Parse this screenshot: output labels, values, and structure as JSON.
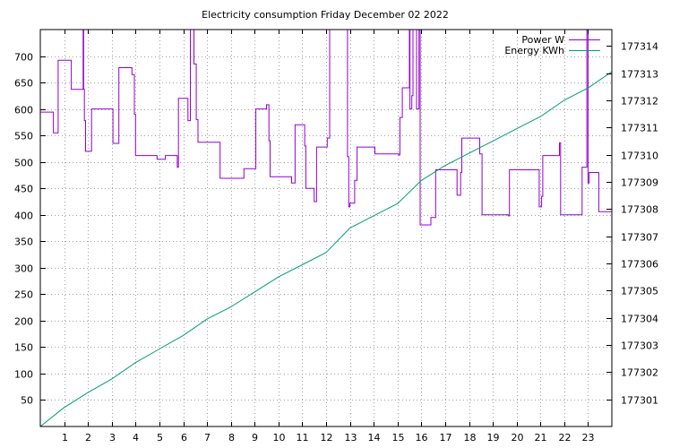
{
  "chart_data": {
    "type": "line",
    "title": "Electricity consumption Friday December 02 2022",
    "xlabel": "",
    "ylabel": "",
    "y2label": "",
    "grid": true,
    "legend_position": "top-right",
    "x_range": [
      0,
      24
    ],
    "x_ticks": [
      1,
      2,
      3,
      4,
      5,
      6,
      7,
      8,
      9,
      10,
      11,
      12,
      13,
      14,
      15,
      16,
      17,
      18,
      19,
      20,
      21,
      22,
      23
    ],
    "y_range": [
      0,
      750
    ],
    "y_ticks": [
      50,
      100,
      150,
      200,
      250,
      300,
      350,
      400,
      450,
      500,
      550,
      600,
      650,
      700
    ],
    "y2_range": [
      177300.0,
      177314.6
    ],
    "y2_ticks": [
      177301,
      177302,
      177303,
      177304,
      177305,
      177306,
      177307,
      177308,
      177309,
      177310,
      177311,
      177312,
      177313,
      177314
    ],
    "series": [
      {
        "name": "Power W",
        "axis": "y",
        "color": "#9400d3",
        "step": true,
        "points": [
          [
            0.0,
            594
          ],
          [
            0.55,
            555
          ],
          [
            0.75,
            692
          ],
          [
            1.3,
            637
          ],
          [
            1.8,
            750
          ],
          [
            1.82,
            637
          ],
          [
            1.85,
            578
          ],
          [
            1.9,
            520
          ],
          [
            2.15,
            600
          ],
          [
            3.05,
            535
          ],
          [
            3.3,
            678
          ],
          [
            3.85,
            665
          ],
          [
            3.95,
            590
          ],
          [
            4.0,
            512
          ],
          [
            4.9,
            505
          ],
          [
            5.25,
            512
          ],
          [
            5.75,
            490
          ],
          [
            5.8,
            620
          ],
          [
            6.2,
            578
          ],
          [
            6.3,
            750
          ],
          [
            6.45,
            685
          ],
          [
            6.55,
            580
          ],
          [
            6.62,
            537
          ],
          [
            7.55,
            469
          ],
          [
            8.55,
            487
          ],
          [
            9.05,
            600
          ],
          [
            9.5,
            608
          ],
          [
            9.6,
            540
          ],
          [
            9.65,
            472
          ],
          [
            10.55,
            460
          ],
          [
            10.7,
            570
          ],
          [
            11.1,
            530
          ],
          [
            11.15,
            450
          ],
          [
            11.5,
            425
          ],
          [
            11.6,
            528
          ],
          [
            12.05,
            545
          ],
          [
            12.15,
            750
          ],
          [
            12.9,
            510
          ],
          [
            12.95,
            415
          ],
          [
            13.0,
            422
          ],
          [
            13.2,
            465
          ],
          [
            13.3,
            528
          ],
          [
            14.05,
            515
          ],
          [
            15.05,
            513
          ],
          [
            15.1,
            584
          ],
          [
            15.2,
            640
          ],
          [
            15.5,
            750
          ],
          [
            15.52,
            600
          ],
          [
            15.6,
            625
          ],
          [
            15.65,
            750
          ],
          [
            15.8,
            600
          ],
          [
            15.9,
            750
          ],
          [
            15.95,
            381
          ],
          [
            16.4,
            395
          ],
          [
            16.6,
            485
          ],
          [
            17.5,
            437
          ],
          [
            17.65,
            480
          ],
          [
            17.7,
            545
          ],
          [
            18.45,
            515
          ],
          [
            18.55,
            400
          ],
          [
            19.65,
            398
          ],
          [
            19.7,
            485
          ],
          [
            20.95,
            415
          ],
          [
            21.05,
            435
          ],
          [
            21.1,
            512
          ],
          [
            21.8,
            536
          ],
          [
            21.85,
            400
          ],
          [
            22.75,
            490
          ],
          [
            22.95,
            750
          ],
          [
            23.0,
            460
          ],
          [
            23.05,
            480
          ],
          [
            23.45,
            406
          ],
          [
            24.0,
            406
          ]
        ]
      },
      {
        "name": "Energy KWh",
        "axis": "y2",
        "color": "#009e73",
        "step": false,
        "points": [
          [
            0.0,
            177300.0
          ],
          [
            1.0,
            177300.7
          ],
          [
            2.0,
            177301.25
          ],
          [
            3.0,
            177301.75
          ],
          [
            4.0,
            177302.35
          ],
          [
            5.0,
            177302.85
          ],
          [
            6.0,
            177303.35
          ],
          [
            7.0,
            177303.95
          ],
          [
            8.0,
            177304.4
          ],
          [
            9.0,
            177304.95
          ],
          [
            10.0,
            177305.5
          ],
          [
            11.0,
            177305.95
          ],
          [
            12.0,
            177306.4
          ],
          [
            13.0,
            177307.3
          ],
          [
            14.0,
            177307.75
          ],
          [
            15.0,
            177308.2
          ],
          [
            16.0,
            177309.05
          ],
          [
            17.0,
            177309.6
          ],
          [
            18.0,
            177310.05
          ],
          [
            19.0,
            177310.5
          ],
          [
            20.0,
            177310.95
          ],
          [
            21.0,
            177311.4
          ],
          [
            22.0,
            177312.0
          ],
          [
            23.0,
            177312.45
          ],
          [
            24.0,
            177313.05
          ]
        ]
      }
    ]
  }
}
